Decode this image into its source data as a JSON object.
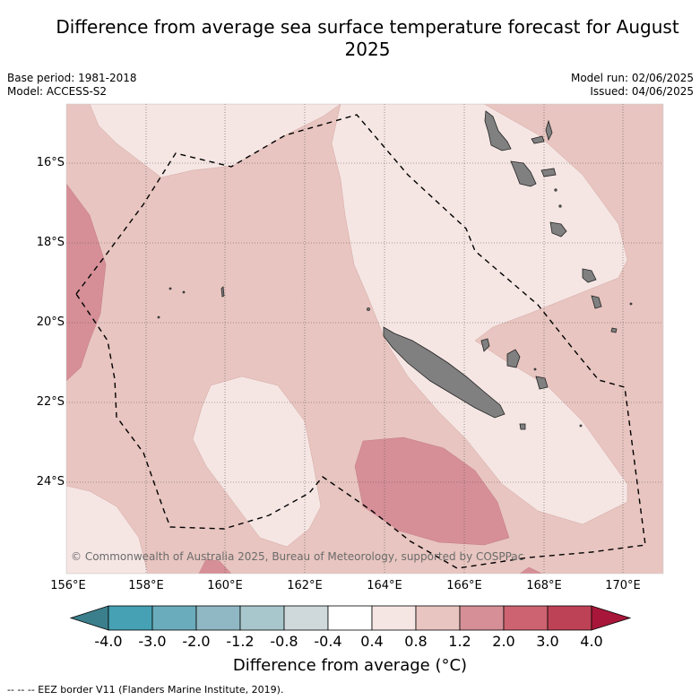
{
  "title": "Difference from average sea surface temperature forecast for August 2025",
  "meta_left": {
    "base_period": "Base period: 1981-2018",
    "model": "Model: ACCESS-S2"
  },
  "meta_right": {
    "model_run": "Model run: 02/06/2025",
    "issued": "Issued: 04/06/2025"
  },
  "credit": "© Commonwealth of Australia 2025, Bureau of Meteorology, supported by COSPPac",
  "longitude_labels": [
    "156°E",
    "158°E",
    "160°E",
    "162°E",
    "164°E",
    "166°E",
    "168°E",
    "170°E"
  ],
  "latitude_labels": [
    "16°S",
    "18°S",
    "20°S",
    "22°S",
    "24°S"
  ],
  "colorbar": {
    "title": "Difference from average (°C)",
    "tick_labels": [
      "-4.0",
      "-3.0",
      "-2.0",
      "-1.2",
      "-0.8",
      "-0.4",
      "0.4",
      "0.8",
      "1.2",
      "2.0",
      "3.0",
      "4.0"
    ],
    "colors": [
      "#3b7f8c",
      "#45a1b3",
      "#6aacbb",
      "#8fb8c4",
      "#a8c7cc",
      "#cfd8da",
      "#ffffff",
      "#f5e6e4",
      "#e8c5c0",
      "#d68f97",
      "#cd6370",
      "#be4255",
      "#a8173a"
    ]
  },
  "contour_colors": {
    "light": "#f5e6e4",
    "medium": "#e8c5c0",
    "dark": "#d68f97",
    "land": "#808080"
  },
  "footnote": "-- -- -- EEZ border V11 (Flanders Marine Institute, 2019)."
}
